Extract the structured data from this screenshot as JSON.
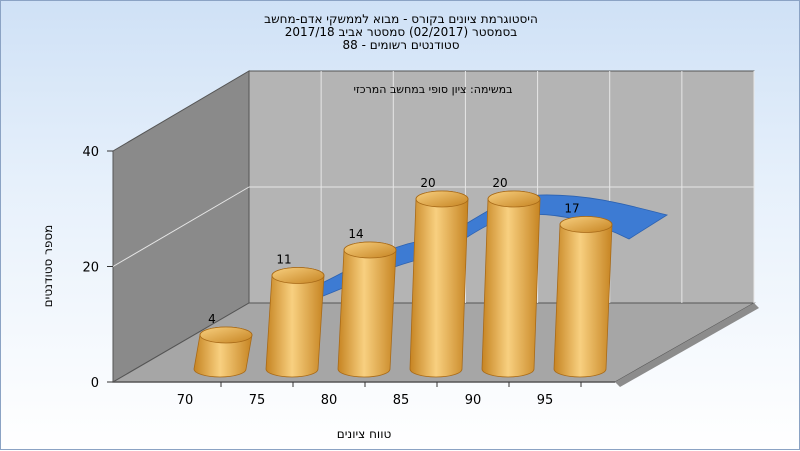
{
  "chart_data": {
    "type": "bar",
    "title_lines": [
      "היסטוגרמת ציונים בקורס - מבוא לממשקי אדם-מחשב",
      "בסמסטר  (02/2017)  סמסטר אביב 2017/18",
      "סטודנטים רשומים - 88"
    ],
    "annotation": "במשימה: ציון סופי במחשב המרכזי",
    "xlabel": "טווח ציונים",
    "ylabel": "מספר סטודנטים",
    "x_ticks": [
      "70",
      "75",
      "80",
      "85",
      "90",
      "95"
    ],
    "y_ticks": [
      "0",
      "20",
      "40"
    ],
    "ylim": [
      0,
      40
    ],
    "values": [
      4,
      11,
      14,
      20,
      20,
      17
    ],
    "value_labels": [
      "4",
      "11",
      "14",
      "20",
      "20",
      "17"
    ],
    "has_trend_curve": true,
    "colors": {
      "bar_light": "#f8d080",
      "bar_dark": "#c68422",
      "curve": "#3d7bd3",
      "back_wall": "#b4b4b4",
      "side_wall": "#8a8a8a",
      "floor": "#a6a6a6"
    }
  }
}
